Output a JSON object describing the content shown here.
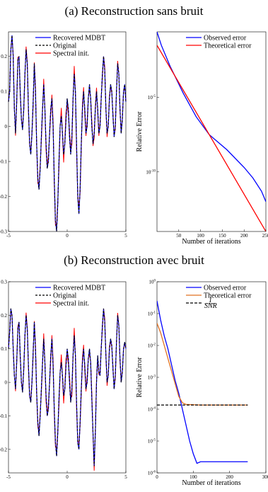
{
  "captions": {
    "a": "(a) Reconstruction sans bruit",
    "b": "(b) Reconstruction avec bruit"
  },
  "colors": {
    "recovered": "#0000ff",
    "original": "#000000",
    "spectral": "#ff0000",
    "observed_error": "#0000ff",
    "theoretical_error_top": "#ff0000",
    "theoretical_error_bottom": "#e07020",
    "snr": "#000000"
  },
  "chart_data": [
    {
      "id": "a-signal",
      "type": "line",
      "xlim": [
        -5,
        5
      ],
      "ylim": [
        -0.3,
        0.27
      ],
      "xticks": [
        -5,
        0,
        5
      ],
      "yticks": [
        -0.3,
        -0.2,
        -0.1,
        0,
        0.1,
        0.2
      ],
      "xlabel": "",
      "ylabel": "",
      "legend": {
        "placement": "top-right",
        "entries": [
          "Recovered MDBT",
          "Original",
          "Spectral init."
        ]
      },
      "signal_points": [
        [
          -5,
          0.07
        ],
        [
          -4.9,
          0.1
        ],
        [
          -4.8,
          0.22
        ],
        [
          -4.7,
          0.26
        ],
        [
          -4.6,
          0.2
        ],
        [
          -4.5,
          0.05
        ],
        [
          -4.4,
          -0.02
        ],
        [
          -4.3,
          0.07
        ],
        [
          -4.2,
          0.19
        ],
        [
          -4.1,
          0.2
        ],
        [
          -4,
          0.1
        ],
        [
          -3.9,
          0.02
        ],
        [
          -3.8,
          -0.01
        ],
        [
          -3.7,
          0.05
        ],
        [
          -3.6,
          0.15
        ],
        [
          -3.5,
          0.22
        ],
        [
          -3.4,
          0.18
        ],
        [
          -3.3,
          0.05
        ],
        [
          -3.2,
          -0.05
        ],
        [
          -3.1,
          -0.08
        ],
        [
          -3,
          -0.02
        ],
        [
          -2.9,
          0.07
        ],
        [
          -2.8,
          0.18
        ],
        [
          -2.7,
          0.1
        ],
        [
          -2.6,
          -0.05
        ],
        [
          -2.5,
          -0.15
        ],
        [
          -2.4,
          -0.18
        ],
        [
          -2.3,
          -0.12
        ],
        [
          -2.2,
          -0.03
        ],
        [
          -2.1,
          0.05
        ],
        [
          -2,
          0.12
        ],
        [
          -1.9,
          0.05
        ],
        [
          -1.8,
          -0.05
        ],
        [
          -1.7,
          -0.12
        ],
        [
          -1.6,
          -0.1
        ],
        [
          -1.5,
          -0.02
        ],
        [
          -1.4,
          0.05
        ],
        [
          -1.3,
          0.08
        ],
        [
          -1.2,
          0
        ],
        [
          -1.1,
          -0.15
        ],
        [
          -1,
          -0.27
        ],
        [
          -0.9,
          -0.3
        ],
        [
          -0.8,
          -0.22
        ],
        [
          -0.7,
          -0.1
        ],
        [
          -0.6,
          0
        ],
        [
          -0.5,
          0.03
        ],
        [
          -0.4,
          -0.02
        ],
        [
          -0.3,
          -0.08
        ],
        [
          -0.2,
          -0.05
        ],
        [
          -0.1,
          0.02
        ],
        [
          0,
          0.08
        ],
        [
          0.1,
          0.05
        ],
        [
          0.2,
          -0.03
        ],
        [
          0.3,
          -0.08
        ],
        [
          0.4,
          -0.03
        ],
        [
          0.5,
          0.08
        ],
        [
          0.6,
          0.15
        ],
        [
          0.7,
          0.1
        ],
        [
          0.8,
          -0.05
        ],
        [
          0.9,
          -0.2
        ],
        [
          1,
          -0.25
        ],
        [
          1.1,
          -0.18
        ],
        [
          1.2,
          -0.05
        ],
        [
          1.3,
          0.05
        ],
        [
          1.4,
          0.1
        ],
        [
          1.5,
          0.05
        ],
        [
          1.6,
          -0.02
        ],
        [
          1.7,
          0
        ],
        [
          1.8,
          0.08
        ],
        [
          1.9,
          0.12
        ],
        [
          2,
          0.08
        ],
        [
          2.1,
          0
        ],
        [
          2.2,
          -0.05
        ],
        [
          2.3,
          -0.02
        ],
        [
          2.4,
          0.05
        ],
        [
          2.5,
          0.1
        ],
        [
          2.6,
          0.05
        ],
        [
          2.7,
          -0.02
        ],
        [
          2.8,
          0
        ],
        [
          2.9,
          0.08
        ],
        [
          3,
          0.15
        ],
        [
          3.1,
          0.2
        ],
        [
          3.2,
          0.16
        ],
        [
          3.3,
          0.05
        ],
        [
          3.4,
          -0.02
        ],
        [
          3.5,
          0
        ],
        [
          3.6,
          0.08
        ],
        [
          3.7,
          0.12
        ],
        [
          3.8,
          0.1
        ],
        [
          3.9,
          0.03
        ],
        [
          4,
          -0.03
        ],
        [
          4.1,
          0
        ],
        [
          4.2,
          0.1
        ],
        [
          4.3,
          0.18
        ],
        [
          4.4,
          0.15
        ],
        [
          4.5,
          0.05
        ],
        [
          4.6,
          -0.02
        ],
        [
          4.7,
          0.02
        ],
        [
          4.8,
          0.1
        ],
        [
          4.9,
          0.12
        ],
        [
          5,
          0.07
        ]
      ]
    },
    {
      "id": "a-error",
      "type": "line",
      "xlim": [
        0,
        250
      ],
      "ylog": true,
      "ylim_exp": [
        -14,
        -0.6
      ],
      "xticks": [
        50,
        100,
        150,
        200,
        250
      ],
      "yticks": [
        "10^-5",
        "10^-10"
      ],
      "xlabel": "Number of iterations",
      "ylabel": "Relative Error",
      "legend": {
        "placement": "top-right",
        "entries": [
          "Observed error",
          "Theoretical error"
        ]
      },
      "series": [
        {
          "name": "Observed error",
          "log10_points": [
            [
              0,
              -0.6
            ],
            [
              10,
              -1.5
            ],
            [
              30,
              -2.9
            ],
            [
              60,
              -4.7
            ],
            [
              90,
              -6.3
            ],
            [
              120,
              -7.5
            ],
            [
              140,
              -8.0
            ],
            [
              160,
              -8.5
            ],
            [
              180,
              -9.1
            ],
            [
              200,
              -9.7
            ],
            [
              220,
              -10.4
            ],
            [
              240,
              -11.3
            ],
            [
              250,
              -12.0
            ]
          ]
        },
        {
          "name": "Theoretical error",
          "log10_points": [
            [
              0,
              -1.5
            ],
            [
              250,
              -14.0
            ]
          ]
        }
      ]
    },
    {
      "id": "b-signal",
      "type": "line",
      "xlim": [
        -5,
        5
      ],
      "ylim": [
        -0.27,
        0.3
      ],
      "xticks": [
        -5,
        0,
        5
      ],
      "yticks": [
        -0.2,
        -0.1,
        0,
        0.1,
        0.2,
        0.3
      ],
      "xlabel": "",
      "ylabel": "",
      "legend": {
        "placement": "top-right",
        "entries": [
          "Recovered MDBT",
          "Original",
          "Spectral init."
        ]
      },
      "signal_points": [
        [
          -5,
          0.1
        ],
        [
          -4.9,
          0.15
        ],
        [
          -4.8,
          0.22
        ],
        [
          -4.7,
          0.2
        ],
        [
          -4.6,
          0.1
        ],
        [
          -4.5,
          0.02
        ],
        [
          -4.4,
          -0.02
        ],
        [
          -4.3,
          0.06
        ],
        [
          -4.2,
          0.16
        ],
        [
          -4.1,
          0.18
        ],
        [
          -4,
          0.08
        ],
        [
          -3.9,
          0
        ],
        [
          -3.8,
          -0.03
        ],
        [
          -3.7,
          0.04
        ],
        [
          -3.6,
          0.14
        ],
        [
          -3.5,
          0.2
        ],
        [
          -3.4,
          0.16
        ],
        [
          -3.3,
          0.05
        ],
        [
          -3.2,
          -0.04
        ],
        [
          -3.1,
          -0.06
        ],
        [
          -3,
          0
        ],
        [
          -2.9,
          0.09
        ],
        [
          -2.8,
          0.18
        ],
        [
          -2.7,
          0.1
        ],
        [
          -2.6,
          -0.03
        ],
        [
          -2.5,
          -0.12
        ],
        [
          -2.4,
          -0.16
        ],
        [
          -2.3,
          -0.1
        ],
        [
          -2.2,
          -0.02
        ],
        [
          -2.1,
          0.06
        ],
        [
          -2,
          0.13
        ],
        [
          -1.9,
          0.06
        ],
        [
          -1.8,
          -0.04
        ],
        [
          -1.7,
          -0.1
        ],
        [
          -1.6,
          -0.08
        ],
        [
          -1.5,
          0
        ],
        [
          -1.4,
          0.08
        ],
        [
          -1.3,
          0.13
        ],
        [
          -1.2,
          0.05
        ],
        [
          -1.1,
          -0.08
        ],
        [
          -1,
          -0.18
        ],
        [
          -0.9,
          -0.22
        ],
        [
          -0.8,
          -0.15
        ],
        [
          -0.7,
          -0.05
        ],
        [
          -0.6,
          0.03
        ],
        [
          -0.5,
          0.06
        ],
        [
          -0.4,
          0.02
        ],
        [
          -0.3,
          -0.04
        ],
        [
          -0.2,
          -0.02
        ],
        [
          -0.1,
          0.05
        ],
        [
          0,
          0.1
        ],
        [
          0.1,
          0.07
        ],
        [
          0.2,
          0
        ],
        [
          0.3,
          -0.06
        ],
        [
          0.4,
          -0.02
        ],
        [
          0.5,
          0.08
        ],
        [
          0.6,
          0.14
        ],
        [
          0.7,
          0.08
        ],
        [
          0.8,
          -0.06
        ],
        [
          0.9,
          -0.18
        ],
        [
          1,
          -0.2
        ],
        [
          1.1,
          -0.12
        ],
        [
          1.2,
          -0.02
        ],
        [
          1.3,
          0.06
        ],
        [
          1.4,
          0.1
        ],
        [
          1.5,
          0.05
        ],
        [
          1.6,
          -0.02
        ],
        [
          1.7,
          0
        ],
        [
          1.8,
          0.07
        ],
        [
          1.9,
          0.1
        ],
        [
          2,
          0.06
        ],
        [
          2.1,
          -0.05
        ],
        [
          2.2,
          -0.15
        ],
        [
          2.3,
          -0.25
        ],
        [
          2.4,
          -0.15
        ],
        [
          2.5,
          0
        ],
        [
          2.6,
          0.08
        ],
        [
          2.7,
          0.03
        ],
        [
          2.8,
          0.02
        ],
        [
          2.9,
          0.1
        ],
        [
          3,
          0.17
        ],
        [
          3.1,
          0.22
        ],
        [
          3.2,
          0.18
        ],
        [
          3.3,
          0.08
        ],
        [
          3.4,
          0
        ],
        [
          3.5,
          0.02
        ],
        [
          3.6,
          0.1
        ],
        [
          3.7,
          0.13
        ],
        [
          3.8,
          0.11
        ],
        [
          3.9,
          0.04
        ],
        [
          4,
          -0.02
        ],
        [
          4.1,
          0.02
        ],
        [
          4.2,
          0.12
        ],
        [
          4.3,
          0.2
        ],
        [
          4.4,
          0.17
        ],
        [
          4.5,
          0.07
        ],
        [
          4.6,
          0
        ],
        [
          4.7,
          0.03
        ],
        [
          4.8,
          0.1
        ],
        [
          4.9,
          0.12
        ],
        [
          5,
          0.1
        ]
      ]
    },
    {
      "id": "b-error",
      "type": "line",
      "xlim": [
        0,
        300
      ],
      "ylog": true,
      "ylim_exp": [
        -6,
        0
      ],
      "xticks": [
        0,
        100,
        200,
        300
      ],
      "yticks": [
        "10^0",
        "10^-1",
        "10^-2",
        "10^-3",
        "10^-4",
        "10^-5",
        "10^-6"
      ],
      "xlabel": "Number of iterations",
      "ylabel": "Relative Error",
      "legend": {
        "placement": "top-right",
        "entries": [
          "Observed error",
          "Theoretical error",
          "1/SNR"
        ]
      },
      "series": [
        {
          "name": "Observed error",
          "log10_points": [
            [
              0,
              -0.6
            ],
            [
              10,
              -1.2
            ],
            [
              20,
              -1.7
            ],
            [
              30,
              -2.1
            ],
            [
              40,
              -2.6
            ],
            [
              50,
              -3.1
            ],
            [
              60,
              -3.5
            ],
            [
              70,
              -4.0
            ],
            [
              80,
              -4.5
            ],
            [
              90,
              -5.0
            ],
            [
              100,
              -5.4
            ],
            [
              110,
              -5.7
            ],
            [
              120,
              -5.65
            ],
            [
              150,
              -5.65
            ],
            [
              200,
              -5.65
            ],
            [
              250,
              -5.65
            ]
          ]
        },
        {
          "name": "Theoretical error",
          "log10_points": [
            [
              0,
              -1.3
            ],
            [
              10,
              -1.6
            ],
            [
              20,
              -2.0
            ],
            [
              30,
              -2.4
            ],
            [
              40,
              -2.8
            ],
            [
              50,
              -3.2
            ],
            [
              60,
              -3.6
            ],
            [
              70,
              -3.8
            ],
            [
              80,
              -3.85
            ],
            [
              120,
              -3.87
            ],
            [
              250,
              -3.87
            ]
          ]
        },
        {
          "name": "1/SNR",
          "log10_points": [
            [
              0,
              -3.87
            ],
            [
              250,
              -3.87
            ]
          ]
        }
      ]
    }
  ]
}
